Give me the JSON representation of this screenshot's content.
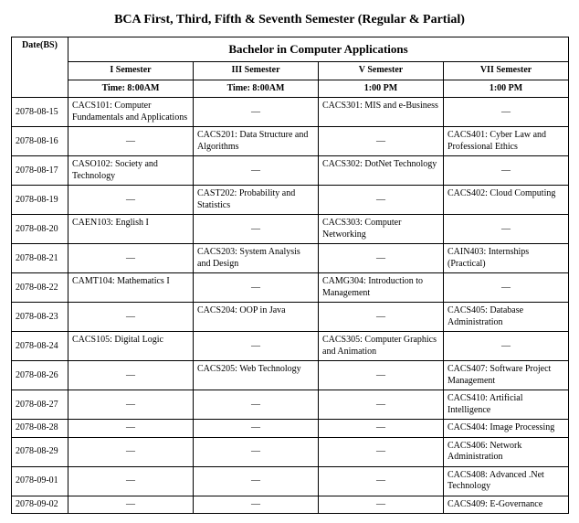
{
  "title": "BCA First, Third, Fifth & Seventh Semester (Regular & Partial)",
  "super_header": "Bachelor in Computer Applications",
  "date_header": "Date(BS)",
  "semesters": {
    "s1": {
      "label": "I Semester",
      "time": "Time: 8:00AM"
    },
    "s3": {
      "label": "III Semester",
      "time": "Time: 8:00AM"
    },
    "s5": {
      "label": "V Semester",
      "time": "1:00 PM"
    },
    "s7": {
      "label": "VII Semester",
      "time": "1:00 PM"
    }
  },
  "em": "—",
  "rows": [
    {
      "date": "2078-08-15",
      "s1": "CACS101: Computer Fundamentals and Applications",
      "s3": "—",
      "s5": "CACS301: MIS and e-Business",
      "s7": "—"
    },
    {
      "date": "2078-08-16",
      "s1": "—",
      "s3": "CACS201: Data Structure and Algorithms",
      "s5": "—",
      "s7": "CACS401: Cyber Law and Professional Ethics"
    },
    {
      "date": "2078-08-17",
      "s1": "CASO102: Society and Technology",
      "s3": "—",
      "s5": "CACS302: DotNet Technology",
      "s7": "—"
    },
    {
      "date": "2078-08-19",
      "s1": "—",
      "s3": "CAST202: Probability and Statistics",
      "s5": "—",
      "s7": "CACS402: Cloud Computing"
    },
    {
      "date": "2078-08-20",
      "s1": "CAEN103: English I",
      "s3": "—",
      "s5": "CACS303: Computer Networking",
      "s7": "—"
    },
    {
      "date": "2078-08-21",
      "s1": "—",
      "s3": "CACS203: System Analysis and Design",
      "s5": "—",
      "s7": "CAIN403: Internships (Practical)"
    },
    {
      "date": "2078-08-22",
      "s1": "CAMT104: Mathematics I",
      "s3": "—",
      "s5": "CAMG304: Introduction to Management",
      "s7": "—"
    },
    {
      "date": "2078-08-23",
      "s1": "—",
      "s3": "CACS204: OOP in Java",
      "s5": "—",
      "s7": "CACS405: Database Administration"
    },
    {
      "date": "2078-08-24",
      "s1": "CACS105: Digital Logic",
      "s3": "—",
      "s5": "CACS305: Computer Graphics and Animation",
      "s7": "—"
    },
    {
      "date": "2078-08-26",
      "s1": "—",
      "s3": "CACS205: Web Technology",
      "s5": "—",
      "s7": "CACS407: Software Project Management"
    },
    {
      "date": "2078-08-27",
      "s1": "—",
      "s3": "—",
      "s5": "—",
      "s7": "CACS410: Artificial Intelligence"
    },
    {
      "date": "2078-08-28",
      "s1": "—",
      "s3": "—",
      "s5": "—",
      "s7": "CACS404: Image Processing"
    },
    {
      "date": "2078-08-29",
      "s1": "—",
      "s3": "—",
      "s5": "—",
      "s7": "CACS406: Network Administration"
    },
    {
      "date": "2078-09-01",
      "s1": "—",
      "s3": "—",
      "s5": "—",
      "s7": "CACS408: Advanced .Net Technology"
    },
    {
      "date": "2078-09-02",
      "s1": "—",
      "s3": "—",
      "s5": "—",
      "s7": "CACS409: E-Governance"
    }
  ]
}
